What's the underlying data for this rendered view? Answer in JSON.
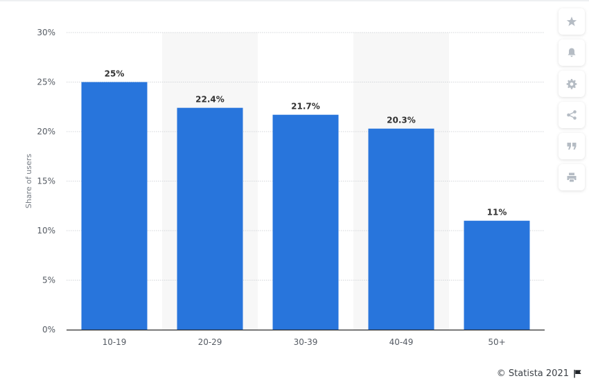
{
  "chart_data": {
    "type": "bar",
    "categories": [
      "10-19",
      "20-29",
      "30-39",
      "40-49",
      "50+"
    ],
    "values": [
      25,
      22.4,
      21.7,
      20.3,
      11
    ],
    "value_labels": [
      "25%",
      "22.4%",
      "21.7%",
      "20.3%",
      "11%"
    ],
    "ylabel": "Share of users",
    "ylim": [
      0,
      30
    ],
    "yticks": [
      0,
      5,
      10,
      15,
      20,
      25,
      30
    ],
    "ytick_labels": [
      "0%",
      "5%",
      "10%",
      "15%",
      "20%",
      "25%",
      "30%"
    ],
    "bar_color": "#2875dc",
    "grid": true,
    "alternating_column_shading": true
  },
  "toolbar": [
    {
      "name": "star-icon"
    },
    {
      "name": "bell-icon"
    },
    {
      "name": "gear-icon"
    },
    {
      "name": "share-icon"
    },
    {
      "name": "quote-icon"
    },
    {
      "name": "print-icon"
    }
  ],
  "footer": {
    "credit": "© Statista 2021",
    "flag_icon": "flag-icon"
  }
}
